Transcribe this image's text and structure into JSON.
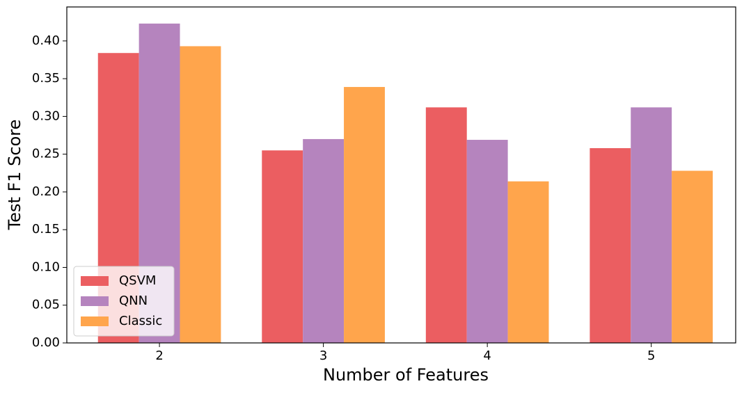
{
  "chart_data": {
    "type": "bar",
    "xlabel": "Number of Features",
    "ylabel": "Test F1 Score",
    "categories": [
      "2",
      "3",
      "4",
      "5"
    ],
    "series": [
      {
        "name": "QSVM",
        "color": "#eb5e61",
        "values": [
          0.384,
          0.255,
          0.312,
          0.258
        ]
      },
      {
        "name": "QNN",
        "color": "#b584be",
        "values": [
          0.423,
          0.27,
          0.269,
          0.312
        ]
      },
      {
        "name": "Classic",
        "color": "#ffa54c",
        "values": [
          0.393,
          0.339,
          0.214,
          0.228
        ]
      }
    ],
    "ylim": [
      0,
      0.445
    ],
    "yticks": [
      {
        "value": 0,
        "label": "0.00"
      },
      {
        "value": 0.05,
        "label": "0.05"
      },
      {
        "value": 0.1,
        "label": "0.10"
      },
      {
        "value": 0.15,
        "label": "0.15"
      },
      {
        "value": 0.2,
        "label": "0.20"
      },
      {
        "value": 0.25,
        "label": "0.25"
      },
      {
        "value": 0.3,
        "label": "0.30"
      },
      {
        "value": 0.35,
        "label": "0.35"
      },
      {
        "value": 0.4,
        "label": "0.40"
      }
    ],
    "grid": false,
    "legend": "lower left"
  }
}
